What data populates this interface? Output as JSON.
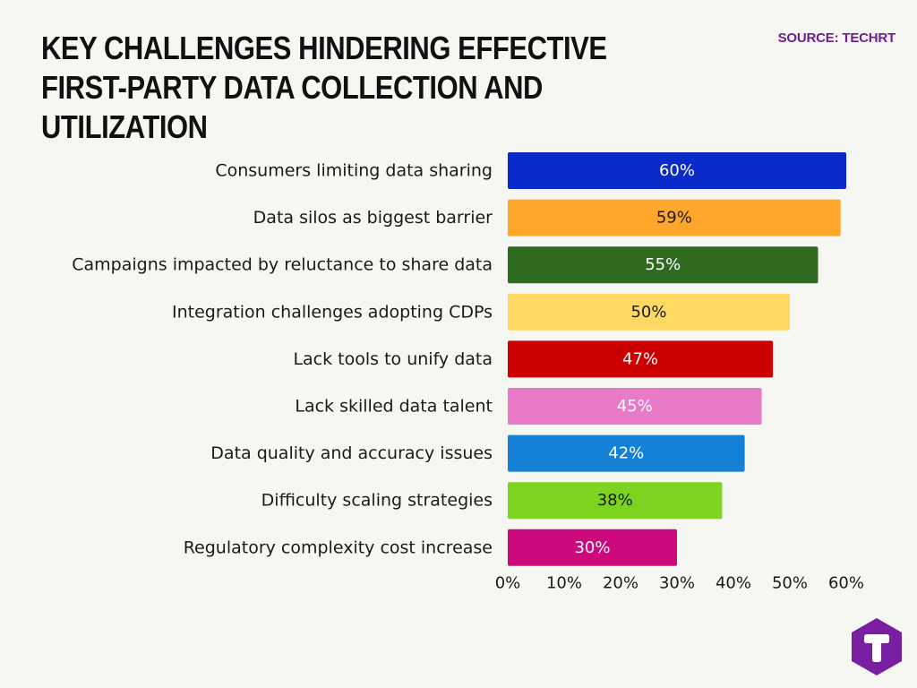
{
  "header": {
    "title": "KEY CHALLENGES HINDERING EFFECTIVE FIRST-PARTY DATA COLLECTION AND UTILIZATION",
    "source": "SOURCE: TECHRT"
  },
  "logo": {
    "icon": "techrt-logo-icon",
    "letter": "T",
    "color": "#7b1fa2"
  },
  "chart_data": {
    "type": "bar",
    "orientation": "horizontal",
    "title": "KEY CHALLENGES HINDERING EFFECTIVE FIRST-PARTY DATA COLLECTION AND UTILIZATION",
    "xlabel": "",
    "ylabel": "",
    "xlim": [
      0,
      60
    ],
    "grid": false,
    "legend": "none",
    "x_ticks": [
      "0%",
      "10%",
      "20%",
      "30%",
      "40%",
      "50%",
      "60%"
    ],
    "categories": [
      "Consumers limiting data sharing",
      "Data silos as biggest barrier",
      "Campaigns impacted by reluctance to share data",
      "Integration challenges adopting CDPs",
      "Lack tools to unify data",
      "Lack skilled data talent",
      "Data quality and accuracy issues",
      "Difficulty scaling strategies",
      "Regulatory complexity cost increase"
    ],
    "values": [
      60,
      59,
      55,
      50,
      47,
      45,
      42,
      38,
      30
    ],
    "value_labels": [
      "60%",
      "59%",
      "55%",
      "50%",
      "47%",
      "45%",
      "42%",
      "38%",
      "30%"
    ],
    "colors": [
      "#0a2bc9",
      "#ffa62b",
      "#2e6a1f",
      "#ffd964",
      "#cc0000",
      "#e87ac8",
      "#1581d6",
      "#7ed321",
      "#cc0a7d"
    ],
    "value_label_colors": [
      "#ffffff",
      "#1a1a1a",
      "#ffffff",
      "#1a1a1a",
      "#ffffff",
      "#ffffff",
      "#ffffff",
      "#1a1a1a",
      "#ffffff"
    ]
  }
}
